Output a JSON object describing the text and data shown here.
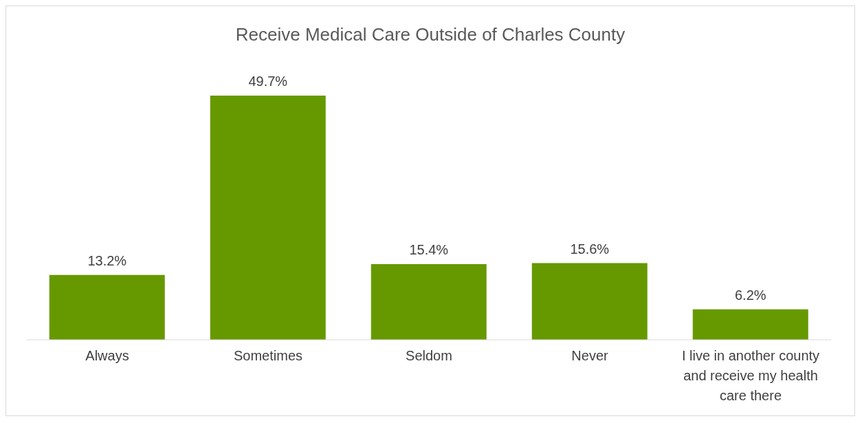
{
  "chart_data": {
    "type": "bar",
    "title": "Receive Medical Care Outside of Charles County",
    "categories": [
      "Always",
      "Sometimes",
      "Seldom",
      "Never",
      "I live in another county and receive my health care there"
    ],
    "values": [
      13.2,
      49.7,
      15.4,
      15.6,
      6.2
    ],
    "value_labels": [
      "13.2%",
      "49.7%",
      "15.4%",
      "15.6%",
      "6.2%"
    ],
    "color": "#669900"
  }
}
